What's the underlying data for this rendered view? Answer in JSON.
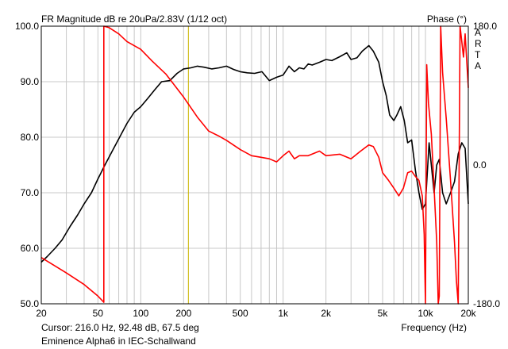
{
  "chart_data": {
    "type": "line",
    "title": "FR Magnitude dB re 20uPa/2.83V (1/12 oct)",
    "right_axis_title": "Phase (°)",
    "watermark": [
      "A",
      "R",
      "T",
      "A"
    ],
    "xlabel": "Frequency (Hz)",
    "x_scale": "log",
    "xlim": [
      20,
      20000
    ],
    "ylim": [
      50,
      100
    ],
    "y2lim": [
      -180,
      180
    ],
    "x_ticks": [
      {
        "value": 20,
        "label": "20"
      },
      {
        "value": 50,
        "label": "50"
      },
      {
        "value": 100,
        "label": "100"
      },
      {
        "value": 200,
        "label": "200"
      },
      {
        "value": 500,
        "label": "500"
      },
      {
        "value": 1000,
        "label": "1k"
      },
      {
        "value": 2000,
        "label": "2k"
      },
      {
        "value": 5000,
        "label": "5k"
      },
      {
        "value": 10000,
        "label": "10k"
      },
      {
        "value": 20000,
        "label": "20k"
      }
    ],
    "y_ticks": [
      {
        "value": 100,
        "label": "100.0"
      },
      {
        "value": 90,
        "label": "90.0"
      },
      {
        "value": 80,
        "label": "80.0"
      },
      {
        "value": 70,
        "label": "70.0"
      },
      {
        "value": 60,
        "label": "60.0"
      },
      {
        "value": 50,
        "label": "50.0"
      }
    ],
    "y2_ticks": [
      {
        "value": 180,
        "label": "180.0"
      },
      {
        "value": 0,
        "label": "0.0"
      },
      {
        "value": -180,
        "label": "-180.0"
      }
    ],
    "cursor_x": 216,
    "cursor_label": "Cursor: 216.0 Hz, 92.48 dB, 67.5 deg",
    "caption": "Eminence Alpha6 in IEC-Schallwand",
    "colors": {
      "magnitude": "#000000",
      "phase": "#ff0000",
      "cursor": "#c8b400",
      "grid": "#c8c8c8"
    },
    "series": [
      {
        "axis": "left",
        "color": "#000000",
        "x": [
          20,
          22,
          25,
          28,
          32,
          36,
          40,
          45,
          50,
          56,
          63,
          71,
          80,
          90,
          100,
          112,
          125,
          140,
          160,
          180,
          200,
          225,
          250,
          280,
          315,
          355,
          400,
          450,
          500,
          560,
          630,
          710,
          800,
          900,
          1000,
          1100,
          1200,
          1300,
          1400,
          1500,
          1600,
          1800,
          2000,
          2200,
          2500,
          2800,
          3000,
          3300,
          3600,
          4000,
          4300,
          4700,
          5000,
          5300,
          5600,
          6000,
          6300,
          6700,
          7100,
          7500,
          8000,
          8500,
          9000,
          9500,
          10000,
          10300,
          10600,
          11000,
          11500,
          12000,
          12500,
          13200,
          14000,
          15000,
          16000,
          17000,
          18000,
          19000,
          20000
        ],
        "values": [
          57.5,
          58.5,
          60,
          61.5,
          64,
          66,
          68,
          70,
          72.5,
          75,
          77.5,
          80,
          82.5,
          84.5,
          85.5,
          87,
          88.5,
          90,
          90.2,
          91.5,
          92.3,
          92.5,
          92.8,
          92.6,
          92.3,
          92.5,
          92.8,
          92.2,
          91.8,
          91.6,
          91.5,
          91.8,
          90.2,
          90.8,
          91.2,
          92.8,
          91.8,
          92.5,
          92.3,
          93.2,
          93,
          93.5,
          94,
          93.8,
          94.5,
          95.2,
          94,
          94.3,
          95.5,
          96.5,
          95.5,
          93.5,
          90,
          87.5,
          84,
          83,
          84,
          85.5,
          83,
          79,
          79.5,
          74,
          70,
          67,
          68,
          73.5,
          79,
          75,
          70,
          75,
          76,
          70,
          68,
          70,
          72,
          77,
          79,
          78,
          68
        ]
      },
      {
        "axis": "right",
        "color": "#ff0000",
        "x": [
          20,
          30,
          40,
          50,
          55,
          55,
          60,
          70,
          80,
          100,
          120,
          150,
          200,
          250,
          300,
          350,
          400,
          500,
          600,
          700,
          800,
          900,
          1000,
          1100,
          1200,
          1300,
          1500,
          1800,
          2000,
          2500,
          3000,
          3500,
          4000,
          4300,
          4700,
          5000,
          5500,
          6000,
          6500,
          7000,
          7500,
          8000,
          8500,
          9000,
          9500,
          9800,
          10000,
          10200,
          10500,
          11000,
          11500,
          12000,
          12300,
          12500,
          12800,
          13200,
          14000,
          15000,
          16000,
          16500,
          17000,
          17500,
          18000,
          18500,
          19000,
          20000
        ],
        "values": [
          -120,
          -140,
          -155,
          -170,
          -178,
          180,
          178,
          170,
          160,
          150,
          135,
          118,
          88,
          62,
          44,
          38,
          32,
          20,
          12,
          10,
          8,
          4,
          12,
          18,
          8,
          12,
          12,
          18,
          12,
          14,
          8,
          18,
          26,
          24,
          10,
          -10,
          -20,
          -30,
          -40,
          -30,
          -10,
          -8,
          -15,
          -20,
          -40,
          -90,
          -180,
          130,
          80,
          40,
          -30,
          -100,
          -180,
          -170,
          180,
          120,
          60,
          -20,
          -100,
          -150,
          -180,
          180,
          160,
          140,
          170,
          100
        ]
      }
    ]
  }
}
